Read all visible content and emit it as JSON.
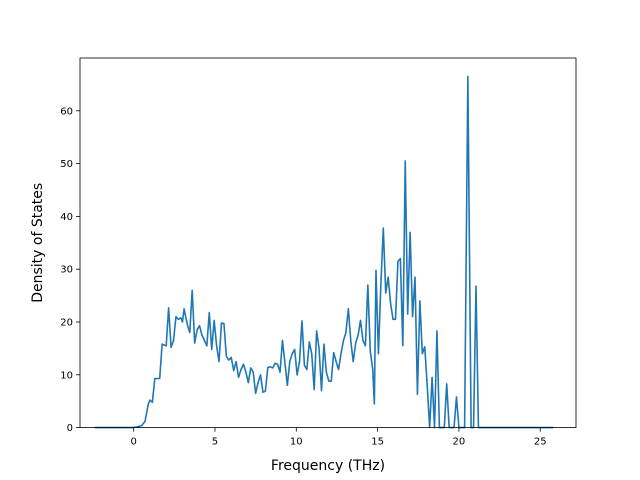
{
  "chart_data": {
    "type": "line",
    "title": "",
    "xlabel": "Frequency (THz)",
    "ylabel": "Density of States",
    "xlim": [
      -3.3,
      27.2
    ],
    "ylim": [
      0,
      70
    ],
    "xticks": [
      0,
      5,
      10,
      15,
      20,
      25
    ],
    "yticks": [
      0,
      10,
      20,
      30,
      40,
      50,
      60
    ],
    "grid": false,
    "legend": "none",
    "line_color": "#1f77b4",
    "series": [
      {
        "values": [
          [
            -2.4,
            0
          ],
          [
            -0.1,
            0
          ],
          [
            0.2,
            0.1
          ],
          [
            0.5,
            0.4
          ],
          [
            0.7,
            1.2
          ],
          [
            0.9,
            4.5
          ],
          [
            1.0,
            5.2
          ],
          [
            1.15,
            4.8
          ],
          [
            1.3,
            9.3
          ],
          [
            1.6,
            9.3
          ],
          [
            1.75,
            15.8
          ],
          [
            2.0,
            15.5
          ],
          [
            2.15,
            22.7
          ],
          [
            2.3,
            15.2
          ],
          [
            2.45,
            16.5
          ],
          [
            2.6,
            21.0
          ],
          [
            2.75,
            20.5
          ],
          [
            2.9,
            20.8
          ],
          [
            3.0,
            20.0
          ],
          [
            3.1,
            22.5
          ],
          [
            3.3,
            19.5
          ],
          [
            3.45,
            18.0
          ],
          [
            3.6,
            26.0
          ],
          [
            3.75,
            16.0
          ],
          [
            3.9,
            18.5
          ],
          [
            4.05,
            19.3
          ],
          [
            4.2,
            17.5
          ],
          [
            4.35,
            16.5
          ],
          [
            4.5,
            15.5
          ],
          [
            4.65,
            21.8
          ],
          [
            4.8,
            14.8
          ],
          [
            4.95,
            20.3
          ],
          [
            5.1,
            15.5
          ],
          [
            5.25,
            12.5
          ],
          [
            5.4,
            19.8
          ],
          [
            5.55,
            19.7
          ],
          [
            5.7,
            13.5
          ],
          [
            5.85,
            12.8
          ],
          [
            6.0,
            13.3
          ],
          [
            6.15,
            10.8
          ],
          [
            6.3,
            12.5
          ],
          [
            6.45,
            9.5
          ],
          [
            6.6,
            11.0
          ],
          [
            6.75,
            12.0
          ],
          [
            6.9,
            10.5
          ],
          [
            7.05,
            8.5
          ],
          [
            7.2,
            11.3
          ],
          [
            7.35,
            10.5
          ],
          [
            7.5,
            6.5
          ],
          [
            7.65,
            8.5
          ],
          [
            7.8,
            10.0
          ],
          [
            7.95,
            6.7
          ],
          [
            8.1,
            6.9
          ],
          [
            8.25,
            11.4
          ],
          [
            8.4,
            11.5
          ],
          [
            8.55,
            11.3
          ],
          [
            8.7,
            12.2
          ],
          [
            8.85,
            12.0
          ],
          [
            9.0,
            10.5
          ],
          [
            9.15,
            16.5
          ],
          [
            9.3,
            12.3
          ],
          [
            9.45,
            8.0
          ],
          [
            9.6,
            12.5
          ],
          [
            9.75,
            14.0
          ],
          [
            9.9,
            14.8
          ],
          [
            10.05,
            10.0
          ],
          [
            10.2,
            12.5
          ],
          [
            10.35,
            20.2
          ],
          [
            10.5,
            11.8
          ],
          [
            10.65,
            11.0
          ],
          [
            10.8,
            16.2
          ],
          [
            10.95,
            14.0
          ],
          [
            11.1,
            7.2
          ],
          [
            11.25,
            18.3
          ],
          [
            11.4,
            15.0
          ],
          [
            11.55,
            7.0
          ],
          [
            11.7,
            15.8
          ],
          [
            11.85,
            10.5
          ],
          [
            12.0,
            8.8
          ],
          [
            12.15,
            8.8
          ],
          [
            12.3,
            14.2
          ],
          [
            12.45,
            12.5
          ],
          [
            12.6,
            11.0
          ],
          [
            12.75,
            14.0
          ],
          [
            12.9,
            16.5
          ],
          [
            13.05,
            18.0
          ],
          [
            13.2,
            22.5
          ],
          [
            13.35,
            16.5
          ],
          [
            13.5,
            12.5
          ],
          [
            13.65,
            16.0
          ],
          [
            13.8,
            17.5
          ],
          [
            13.95,
            20.3
          ],
          [
            14.1,
            16.5
          ],
          [
            14.25,
            15.5
          ],
          [
            14.4,
            27.0
          ],
          [
            14.55,
            14.5
          ],
          [
            14.7,
            11.0
          ],
          [
            14.8,
            4.5
          ],
          [
            14.9,
            29.8
          ],
          [
            15.05,
            14.0
          ],
          [
            15.2,
            27.0
          ],
          [
            15.35,
            37.8
          ],
          [
            15.5,
            25.5
          ],
          [
            15.65,
            28.5
          ],
          [
            15.8,
            23.5
          ],
          [
            15.95,
            20.5
          ],
          [
            16.1,
            20.5
          ],
          [
            16.25,
            31.5
          ],
          [
            16.4,
            32.0
          ],
          [
            16.55,
            15.5
          ],
          [
            16.7,
            50.5
          ],
          [
            16.85,
            21.5
          ],
          [
            17.0,
            37.0
          ],
          [
            17.15,
            21.0
          ],
          [
            17.3,
            28.5
          ],
          [
            17.45,
            6.3
          ],
          [
            17.6,
            24.0
          ],
          [
            17.75,
            14.0
          ],
          [
            17.9,
            15.3
          ],
          [
            18.05,
            8.0
          ],
          [
            18.2,
            0
          ],
          [
            18.35,
            9.5
          ],
          [
            18.5,
            0
          ],
          [
            18.65,
            18.3
          ],
          [
            18.8,
            0
          ],
          [
            19.1,
            0
          ],
          [
            19.25,
            8.3
          ],
          [
            19.4,
            0
          ],
          [
            19.7,
            0
          ],
          [
            19.85,
            5.8
          ],
          [
            20.0,
            0
          ],
          [
            20.35,
            0
          ],
          [
            20.55,
            66.5
          ],
          [
            20.75,
            0
          ],
          [
            20.9,
            0
          ],
          [
            21.05,
            26.8
          ],
          [
            21.2,
            0
          ],
          [
            25.8,
            0
          ]
        ]
      }
    ]
  }
}
